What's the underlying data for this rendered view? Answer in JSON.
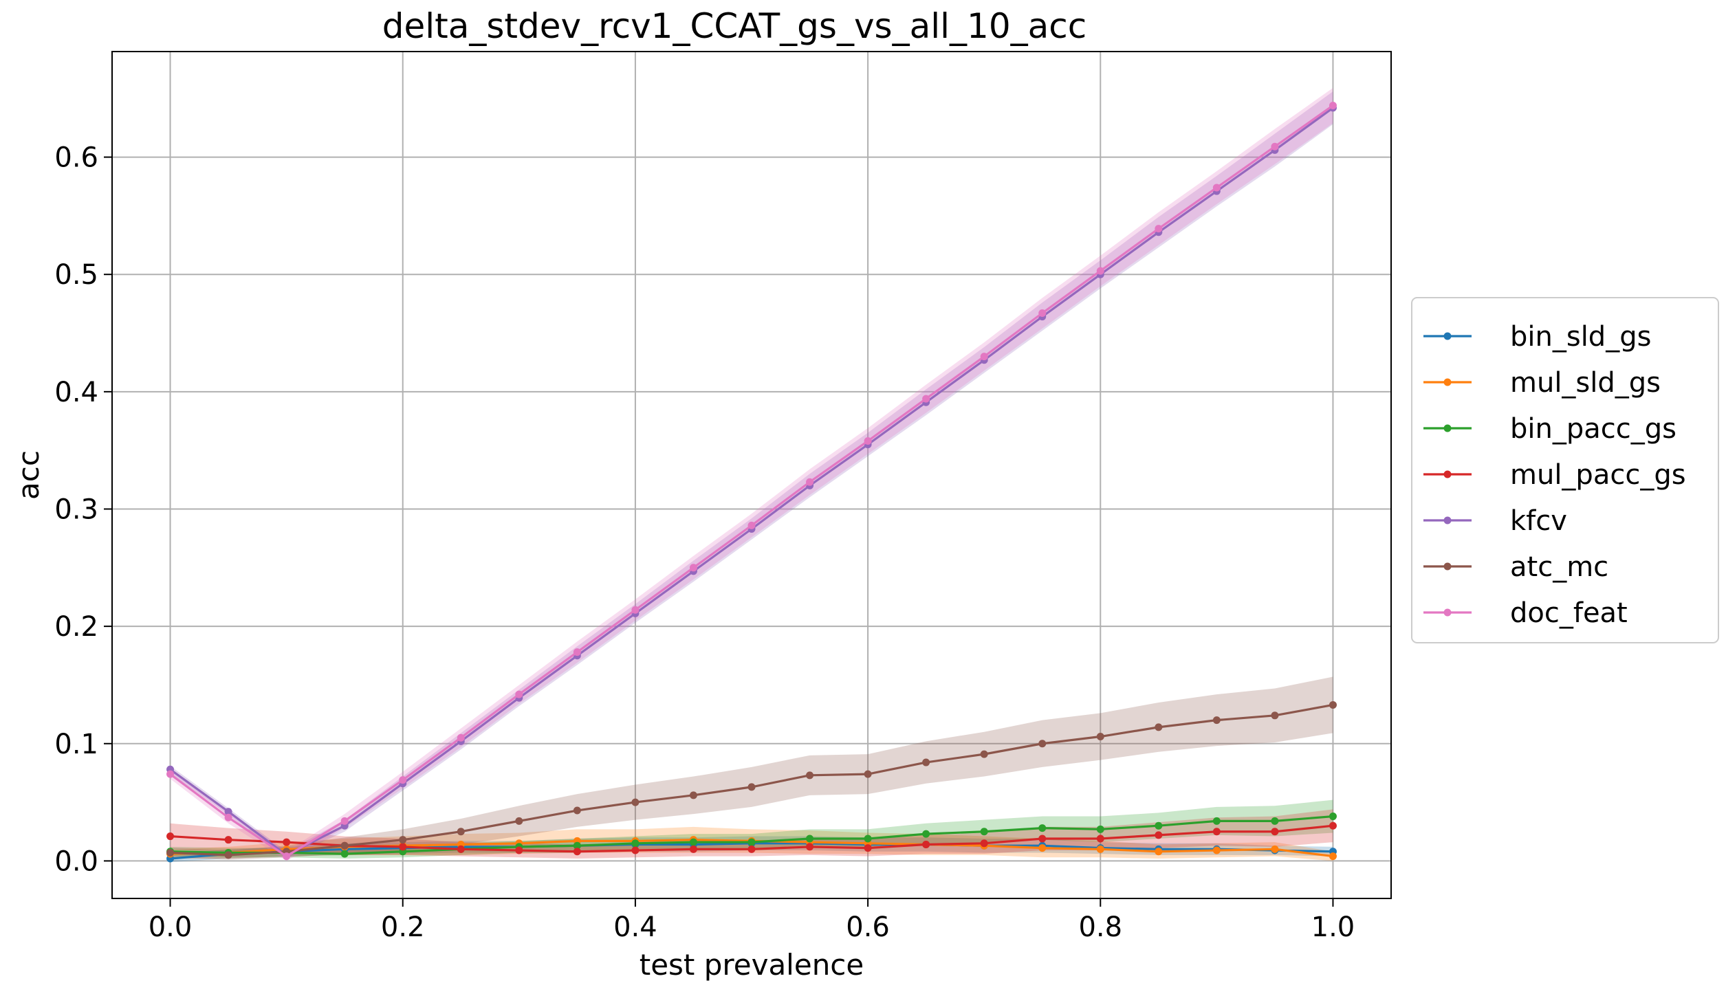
{
  "chart_data": {
    "type": "line",
    "title": "delta_stdev_rcv1_CCAT_gs_vs_all_10_acc",
    "xlabel": "test prevalence",
    "ylabel": "acc",
    "xlim": [
      -0.05,
      1.05
    ],
    "ylim": [
      -0.032,
      0.69
    ],
    "grid": true,
    "legend_position": "center-right-outside",
    "x_ticks": [
      "0.0",
      "0.2",
      "0.4",
      "0.6",
      "0.8",
      "1.0"
    ],
    "y_ticks": [
      "0.0",
      "0.1",
      "0.2",
      "0.3",
      "0.4",
      "0.5",
      "0.6"
    ],
    "x": [
      0.0,
      0.05,
      0.1,
      0.15,
      0.2,
      0.25,
      0.3,
      0.35,
      0.4,
      0.45,
      0.5,
      0.55,
      0.6,
      0.65,
      0.7,
      0.75,
      0.8,
      0.85,
      0.9,
      0.95,
      1.0
    ],
    "series": [
      {
        "name": "bin_sld_gs",
        "color": "#1f77b4",
        "values": [
          0.002,
          0.006,
          0.008,
          0.01,
          0.011,
          0.012,
          0.012,
          0.013,
          0.014,
          0.014,
          0.015,
          0.015,
          0.014,
          0.014,
          0.013,
          0.013,
          0.011,
          0.01,
          0.01,
          0.009,
          0.008
        ],
        "band": [
          0.003,
          0.004,
          0.004,
          0.005,
          0.005,
          0.005,
          0.005,
          0.006,
          0.006,
          0.006,
          0.006,
          0.006,
          0.006,
          0.006,
          0.006,
          0.006,
          0.005,
          0.005,
          0.005,
          0.004,
          0.004
        ]
      },
      {
        "name": "mul_sld_gs",
        "color": "#ff7f0e",
        "values": [
          0.006,
          0.007,
          0.01,
          0.012,
          0.013,
          0.014,
          0.015,
          0.017,
          0.017,
          0.018,
          0.017,
          0.016,
          0.015,
          0.014,
          0.013,
          0.011,
          0.01,
          0.008,
          0.009,
          0.01,
          0.004
        ],
        "band": [
          0.004,
          0.005,
          0.006,
          0.007,
          0.008,
          0.009,
          0.009,
          0.01,
          0.01,
          0.011,
          0.01,
          0.01,
          0.009,
          0.009,
          0.008,
          0.008,
          0.007,
          0.006,
          0.006,
          0.006,
          0.004
        ]
      },
      {
        "name": "bin_pacc_gs",
        "color": "#2ca02c",
        "values": [
          0.008,
          0.007,
          0.007,
          0.006,
          0.008,
          0.01,
          0.012,
          0.013,
          0.015,
          0.016,
          0.016,
          0.019,
          0.019,
          0.023,
          0.025,
          0.028,
          0.027,
          0.03,
          0.034,
          0.034,
          0.038
        ],
        "band": [
          0.004,
          0.004,
          0.004,
          0.004,
          0.005,
          0.005,
          0.005,
          0.006,
          0.006,
          0.007,
          0.007,
          0.008,
          0.008,
          0.009,
          0.01,
          0.01,
          0.011,
          0.011,
          0.012,
          0.013,
          0.014
        ]
      },
      {
        "name": "mul_pacc_gs",
        "color": "#d62728",
        "values": [
          0.021,
          0.018,
          0.016,
          0.013,
          0.012,
          0.01,
          0.009,
          0.008,
          0.009,
          0.01,
          0.01,
          0.012,
          0.011,
          0.014,
          0.015,
          0.019,
          0.019,
          0.022,
          0.025,
          0.025,
          0.03
        ],
        "band": [
          0.011,
          0.01,
          0.009,
          0.008,
          0.007,
          0.006,
          0.006,
          0.006,
          0.006,
          0.006,
          0.006,
          0.007,
          0.007,
          0.008,
          0.009,
          0.01,
          0.01,
          0.011,
          0.012,
          0.013,
          0.014
        ]
      },
      {
        "name": "kfcv",
        "color": "#9467bd",
        "values": [
          0.078,
          0.042,
          0.005,
          0.03,
          0.066,
          0.102,
          0.139,
          0.175,
          0.211,
          0.247,
          0.283,
          0.32,
          0.355,
          0.391,
          0.427,
          0.464,
          0.5,
          0.536,
          0.571,
          0.606,
          0.642
        ],
        "band": [
          0.003,
          0.003,
          0.003,
          0.005,
          0.006,
          0.007,
          0.007,
          0.008,
          0.008,
          0.009,
          0.009,
          0.01,
          0.01,
          0.011,
          0.011,
          0.012,
          0.012,
          0.013,
          0.013,
          0.014,
          0.014
        ]
      },
      {
        "name": "atc_mc",
        "color": "#8c564b",
        "values": [
          0.007,
          0.005,
          0.008,
          0.013,
          0.018,
          0.025,
          0.034,
          0.043,
          0.05,
          0.056,
          0.063,
          0.073,
          0.074,
          0.084,
          0.091,
          0.1,
          0.106,
          0.114,
          0.12,
          0.124,
          0.133
        ],
        "band": [
          0.004,
          0.004,
          0.005,
          0.007,
          0.009,
          0.011,
          0.013,
          0.014,
          0.015,
          0.016,
          0.017,
          0.017,
          0.017,
          0.018,
          0.019,
          0.02,
          0.02,
          0.021,
          0.022,
          0.023,
          0.024
        ]
      },
      {
        "name": "doc_feat",
        "color": "#e377c2",
        "values": [
          0.074,
          0.037,
          0.004,
          0.034,
          0.069,
          0.105,
          0.142,
          0.178,
          0.214,
          0.25,
          0.286,
          0.323,
          0.358,
          0.394,
          0.43,
          0.467,
          0.503,
          0.539,
          0.574,
          0.609,
          0.644
        ],
        "band": [
          0.004,
          0.005,
          0.004,
          0.006,
          0.007,
          0.008,
          0.008,
          0.009,
          0.009,
          0.01,
          0.01,
          0.011,
          0.011,
          0.012,
          0.012,
          0.013,
          0.013,
          0.014,
          0.014,
          0.015,
          0.015
        ]
      }
    ]
  }
}
